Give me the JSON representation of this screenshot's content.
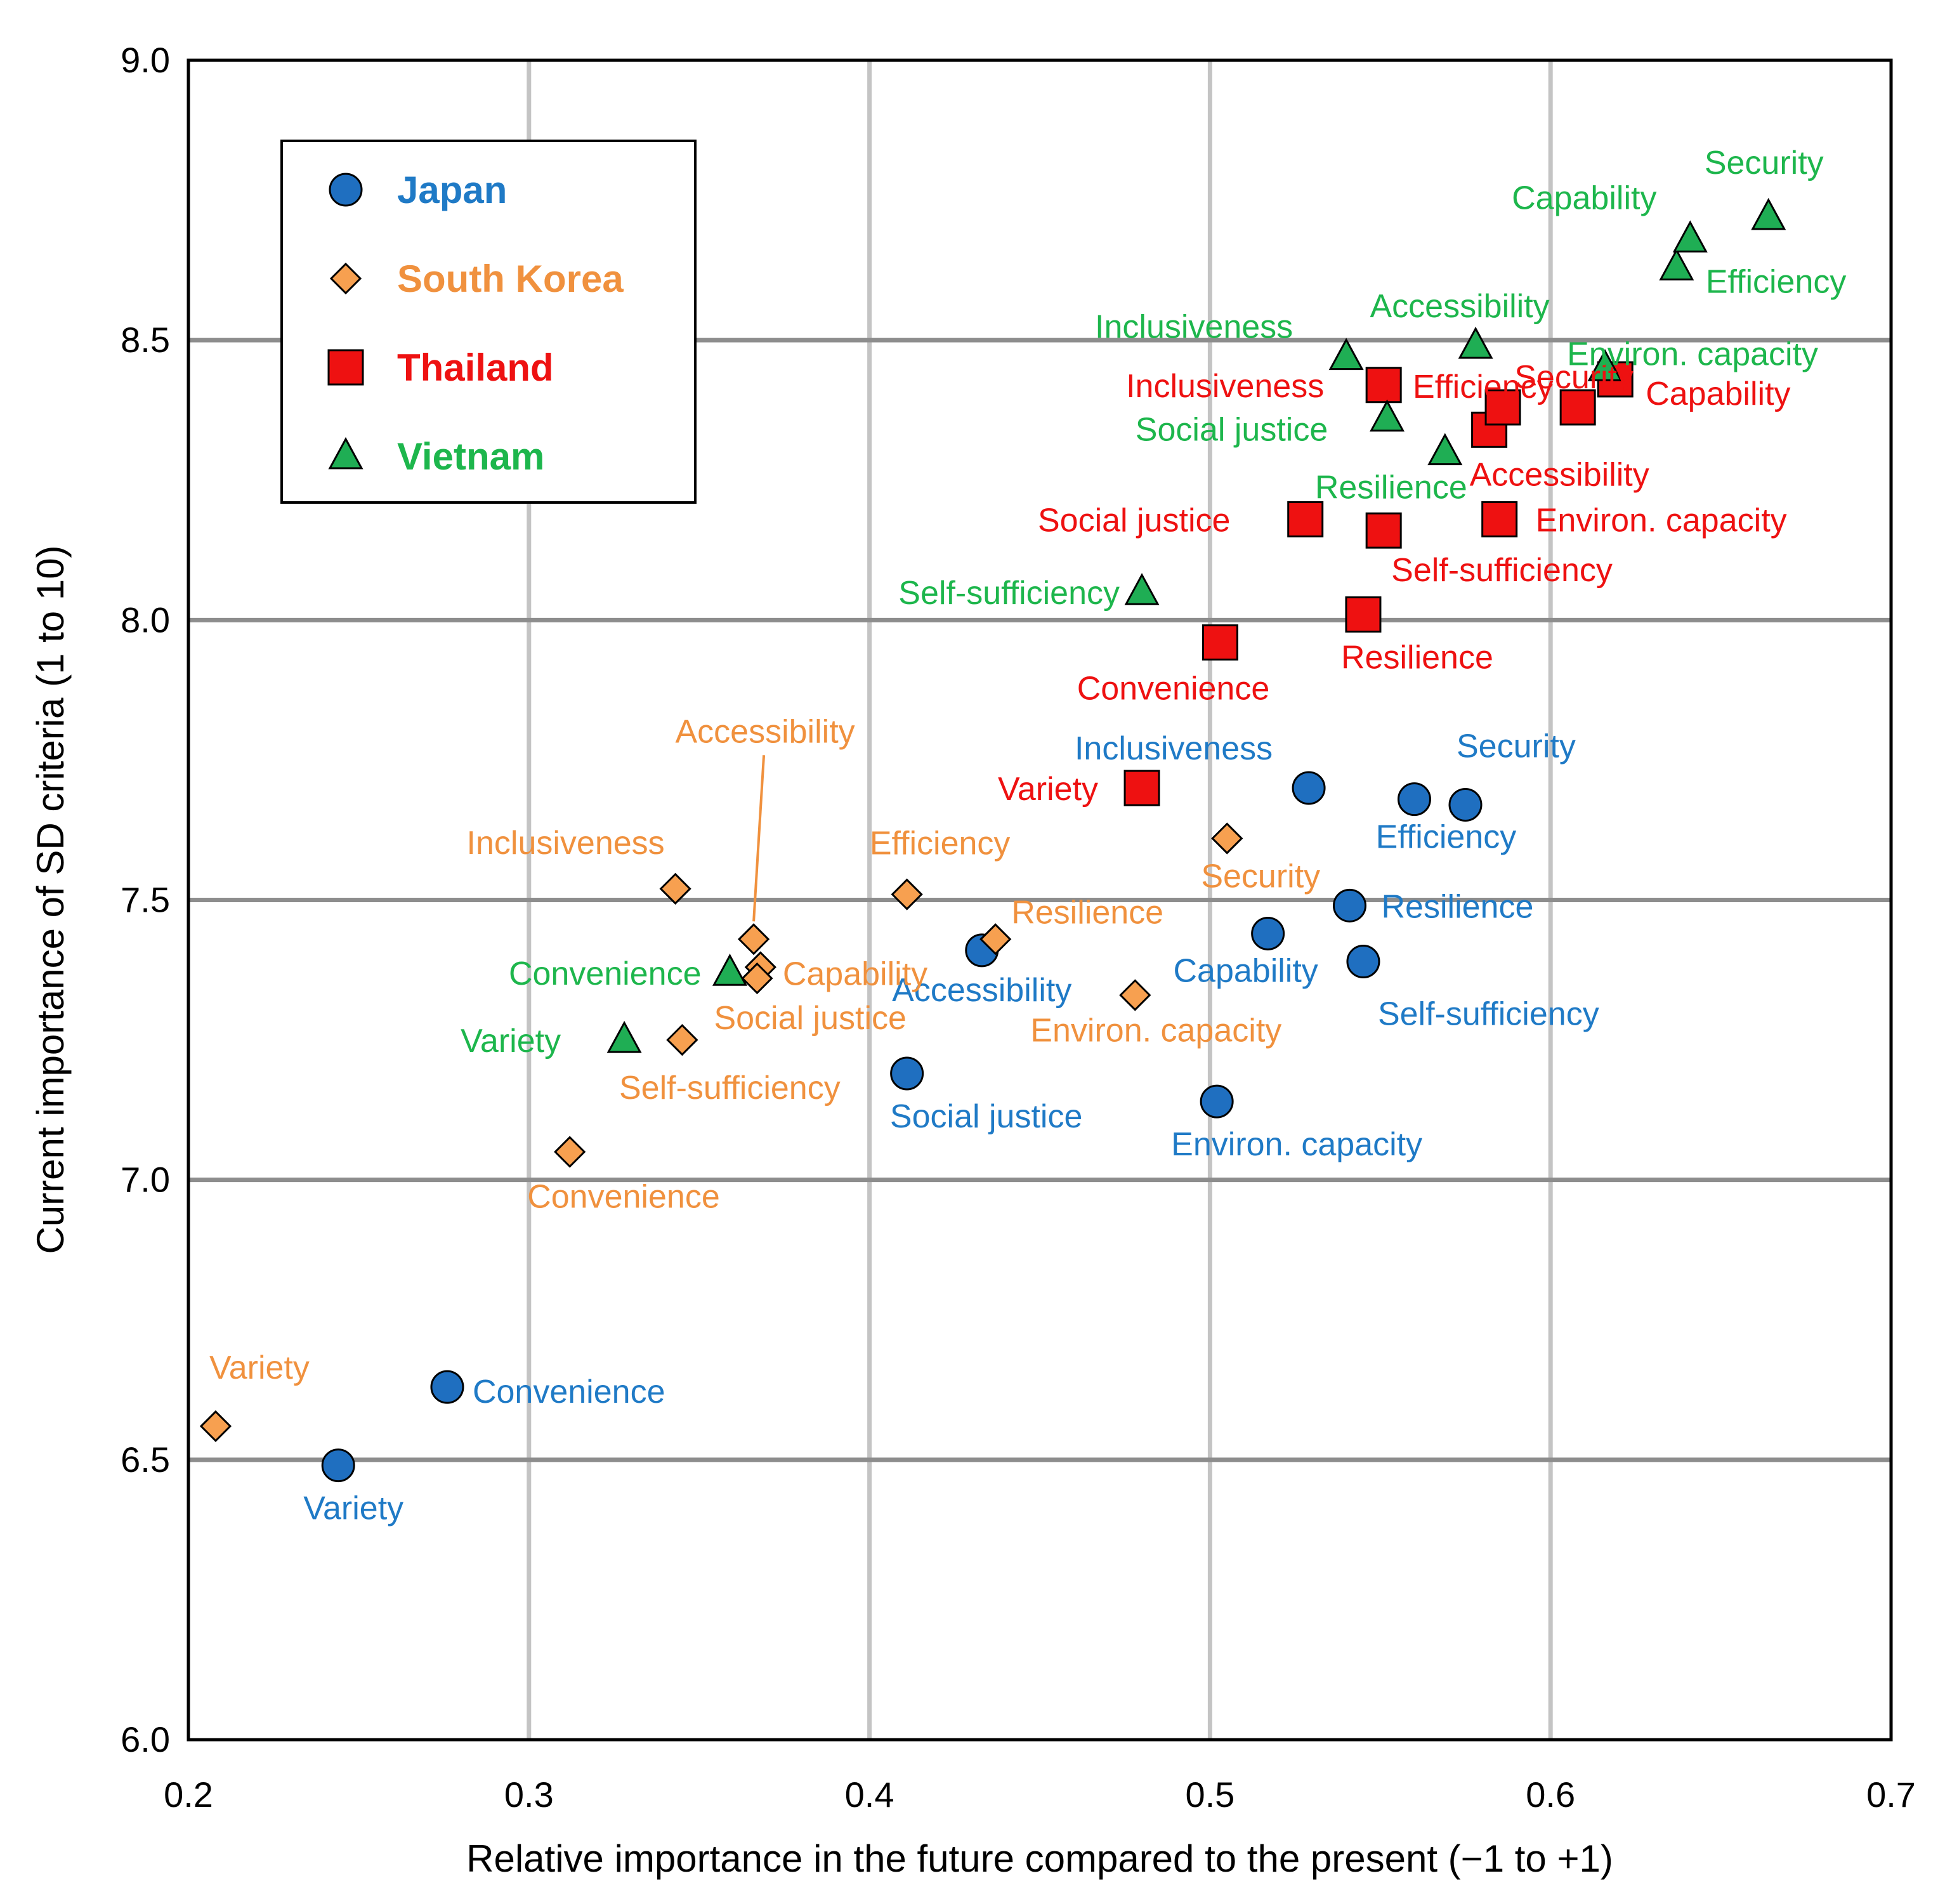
{
  "chart_data": {
    "type": "scatter",
    "title": "",
    "xlabel": "Relative importance in the future compared to the present (−1 to +1)",
    "ylabel": "Current importance of SD criteria (1 to 10)",
    "xlim": [
      0.2,
      0.7
    ],
    "ylim": [
      6.0,
      9.0
    ],
    "xticks": [
      0.2,
      0.3,
      0.4,
      0.5,
      0.6,
      0.7
    ],
    "xtick_labels": [
      "0.2",
      "0.3",
      "0.4",
      "0.5",
      "0.6",
      "0.7"
    ],
    "yticks": [
      6.0,
      6.5,
      7.0,
      7.5,
      8.0,
      8.5,
      9.0
    ],
    "ytick_labels": [
      "6.0",
      "6.5",
      "7.0",
      "7.5",
      "8.0",
      "8.5",
      "9.0"
    ],
    "grid": true,
    "legend_position": "top-left",
    "series": [
      {
        "name": "Japan",
        "marker": "circle",
        "color": "#1f6fc0",
        "label_color": "#1f7ac6",
        "points": [
          {
            "label": "Variety",
            "x": 0.244,
            "y": 6.49
          },
          {
            "label": "Convenience",
            "x": 0.276,
            "y": 6.63
          },
          {
            "label": "Social justice",
            "x": 0.411,
            "y": 7.19
          },
          {
            "label": "Accessibility",
            "x": 0.433,
            "y": 7.41
          },
          {
            "label": "Environ. capacity",
            "x": 0.502,
            "y": 7.14
          },
          {
            "label": "Capability",
            "x": 0.517,
            "y": 7.44
          },
          {
            "label": "Inclusiveness",
            "x": 0.529,
            "y": 7.7
          },
          {
            "label": "Resilience",
            "x": 0.541,
            "y": 7.49
          },
          {
            "label": "Self-sufficiency",
            "x": 0.545,
            "y": 7.39
          },
          {
            "label": "Efficiency",
            "x": 0.56,
            "y": 7.68
          },
          {
            "label": "Security",
            "x": 0.575,
            "y": 7.67
          }
        ]
      },
      {
        "name": "South Korea",
        "marker": "diamond",
        "color": "#f7a050",
        "label_color": "#f0913e",
        "points": [
          {
            "label": "Variety",
            "x": 0.208,
            "y": 6.56
          },
          {
            "label": "Convenience",
            "x": 0.312,
            "y": 7.05
          },
          {
            "label": "Inclusiveness",
            "x": 0.343,
            "y": 7.52
          },
          {
            "label": "Self-sufficiency",
            "x": 0.345,
            "y": 7.25
          },
          {
            "label": "Accessibility",
            "x": 0.366,
            "y": 7.43
          },
          {
            "label": "Capability",
            "x": 0.368,
            "y": 7.38
          },
          {
            "label": "Social justice",
            "x": 0.367,
            "y": 7.36
          },
          {
            "label": "Efficiency",
            "x": 0.411,
            "y": 7.51
          },
          {
            "label": "Resilience",
            "x": 0.437,
            "y": 7.43
          },
          {
            "label": "Environ. capacity",
            "x": 0.478,
            "y": 7.33
          },
          {
            "label": "Security",
            "x": 0.505,
            "y": 7.61
          }
        ]
      },
      {
        "name": "Thailand",
        "marker": "square",
        "color": "#ee1111",
        "label_color": "#ee1111",
        "points": [
          {
            "label": "Variety",
            "x": 0.48,
            "y": 7.7
          },
          {
            "label": "Convenience",
            "x": 0.503,
            "y": 7.96
          },
          {
            "label": "Resilience",
            "x": 0.545,
            "y": 8.01
          },
          {
            "label": "Social justice",
            "x": 0.528,
            "y": 8.18
          },
          {
            "label": "Self-sufficiency",
            "x": 0.551,
            "y": 8.16
          },
          {
            "label": "Inclusiveness",
            "x": 0.551,
            "y": 8.42
          },
          {
            "label": "Accessibility",
            "x": 0.582,
            "y": 8.34
          },
          {
            "label": "Efficiency",
            "x": 0.586,
            "y": 8.38
          },
          {
            "label": "Environ. capacity",
            "x": 0.585,
            "y": 8.18
          },
          {
            "label": "Security",
            "x": 0.608,
            "y": 8.38
          },
          {
            "label": "Capability",
            "x": 0.619,
            "y": 8.43
          }
        ]
      },
      {
        "name": "Vietnam",
        "marker": "triangle",
        "color": "#1fae54",
        "label_color": "#1db64c",
        "points": [
          {
            "label": "Variety",
            "x": 0.328,
            "y": 7.25
          },
          {
            "label": "Convenience",
            "x": 0.359,
            "y": 7.37
          },
          {
            "label": "Self-sufficiency",
            "x": 0.48,
            "y": 8.05
          },
          {
            "label": "Inclusiveness",
            "x": 0.54,
            "y": 8.47
          },
          {
            "label": "Social justice",
            "x": 0.552,
            "y": 8.36
          },
          {
            "label": "Resilience",
            "x": 0.569,
            "y": 8.3
          },
          {
            "label": "Accessibility",
            "x": 0.578,
            "y": 8.49
          },
          {
            "label": "Environ. capacity",
            "x": 0.616,
            "y": 8.45
          },
          {
            "label": "Efficiency",
            "x": 0.637,
            "y": 8.63
          },
          {
            "label": "Capability",
            "x": 0.641,
            "y": 8.68
          },
          {
            "label": "Security",
            "x": 0.664,
            "y": 8.72
          }
        ]
      }
    ]
  }
}
